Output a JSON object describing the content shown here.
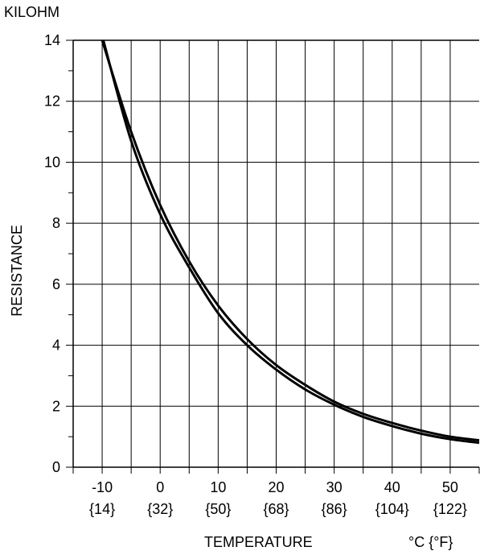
{
  "chart_data": {
    "type": "line",
    "title": "",
    "ylabel": "RESISTANCE",
    "yunit": "KILOHM",
    "xlabel": "TEMPERATURE",
    "xunit": "°C {°F}",
    "xlim": [
      -15,
      55
    ],
    "ylim": [
      0,
      14
    ],
    "grid": true,
    "x_ticks": [
      {
        "value": -10,
        "celsius": "-10",
        "fahrenheit": "{14}"
      },
      {
        "value": 0,
        "celsius": "0",
        "fahrenheit": "{32}"
      },
      {
        "value": 10,
        "celsius": "10",
        "fahrenheit": "{50}"
      },
      {
        "value": 20,
        "celsius": "20",
        "fahrenheit": "{68}"
      },
      {
        "value": 30,
        "celsius": "30",
        "fahrenheit": "{86}"
      },
      {
        "value": 40,
        "celsius": "40",
        "fahrenheit": "{104}"
      },
      {
        "value": 50,
        "celsius": "50",
        "fahrenheit": "{122}"
      }
    ],
    "y_ticks": [
      {
        "value": 0,
        "label": "0"
      },
      {
        "value": 2,
        "label": "2"
      },
      {
        "value": 4,
        "label": "4"
      },
      {
        "value": 6,
        "label": "6"
      },
      {
        "value": 8,
        "label": "8"
      },
      {
        "value": 10,
        "label": "10"
      },
      {
        "value": 12,
        "label": "12"
      },
      {
        "value": 14,
        "label": "14"
      }
    ],
    "series": [
      {
        "x": [
          -10,
          -5,
          0,
          5,
          10,
          15,
          20,
          25,
          30,
          35,
          40,
          45,
          50,
          55
        ],
        "values": [
          14.0,
          11.0,
          8.6,
          6.75,
          5.3,
          4.2,
          3.35,
          2.7,
          2.15,
          1.75,
          1.45,
          1.2,
          1.0,
          0.88
        ]
      },
      {
        "x": [
          -9.8,
          -5,
          0,
          5,
          10,
          15,
          20,
          25,
          30,
          35,
          40,
          45,
          50,
          55
        ],
        "values": [
          14.0,
          10.7,
          8.3,
          6.55,
          5.05,
          4.0,
          3.2,
          2.55,
          2.05,
          1.65,
          1.35,
          1.1,
          0.92,
          0.8
        ]
      }
    ]
  }
}
